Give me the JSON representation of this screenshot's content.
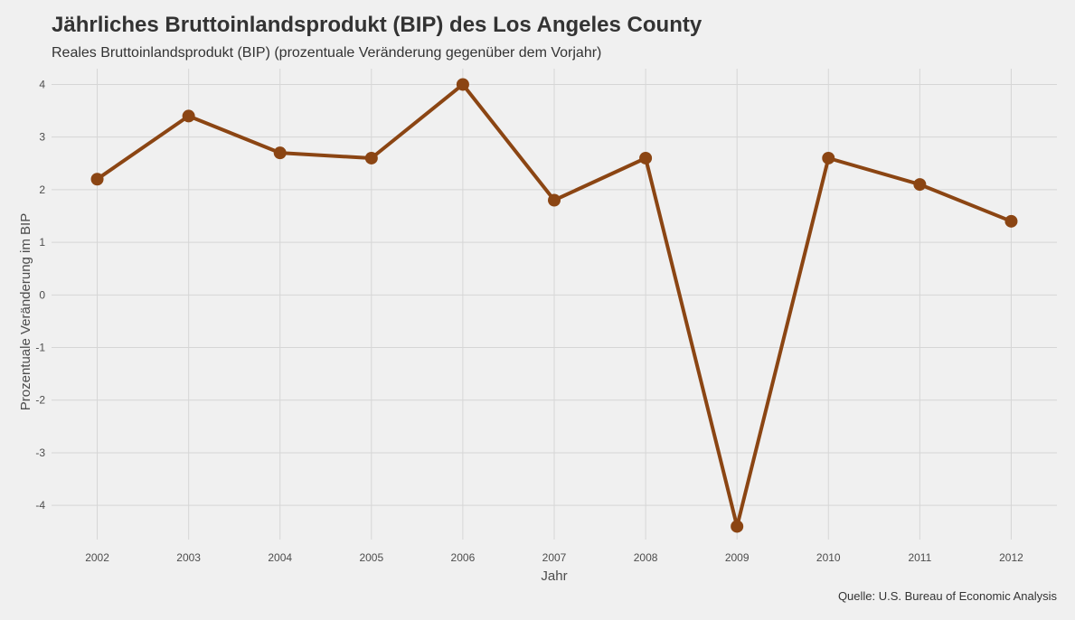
{
  "chart_data": {
    "type": "line",
    "title": "Jährliches Bruttoinlandsprodukt (BIP) des Los Angeles County",
    "subtitle": "Reales Bruttoinlandsprodukt (BIP) (prozentuale Veränderung gegenüber dem Vorjahr)",
    "caption": "Quelle: U.S. Bureau of Economic Analysis",
    "xlabel": "Jahr",
    "ylabel": "Prozentuale Veränderung im BIP",
    "x": [
      2002,
      2003,
      2004,
      2005,
      2006,
      2007,
      2008,
      2009,
      2010,
      2011,
      2012
    ],
    "y": [
      2.2,
      3.4,
      2.7,
      2.6,
      4.0,
      1.8,
      2.6,
      -4.4,
      2.6,
      2.1,
      1.4
    ],
    "xlim": [
      2001.5,
      2012.5
    ],
    "ylim": [
      -4.65,
      4.3
    ],
    "yticks": [
      4,
      3,
      2,
      1,
      0,
      -1,
      -2,
      -3,
      -4
    ],
    "grid": true,
    "legend": "none",
    "colors": {
      "line": "#8B4513",
      "point": "#8B4513",
      "grid": "#d6d6d6",
      "background": "#f0f0f0"
    }
  }
}
